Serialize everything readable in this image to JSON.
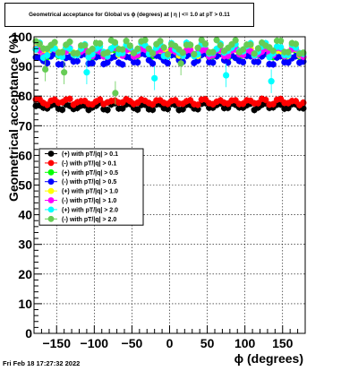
{
  "header": {
    "title": "Geometrical acceptance for Global vs ϕ (degrees) at | η | <= 1.0 at pT > 0.11"
  },
  "footer": {
    "timestamp": "Fri Feb 18 17:27:32 2022"
  },
  "chart_data": {
    "type": "scatter",
    "title": "Geometrical acceptance for Global vs ϕ (degrees) at | η | <= 1.0 at pT > 0.11",
    "xlabel": "ϕ (degrees)",
    "ylabel": "Geometrical acceptance (%)",
    "xlim": [
      -180,
      180
    ],
    "ylim": [
      0,
      100
    ],
    "xticks": [
      -150,
      -100,
      -50,
      0,
      50,
      100,
      150
    ],
    "xtick_labels": [
      "−150",
      "−100",
      "−50",
      "0",
      "50",
      "100",
      "150"
    ],
    "yticks": [
      0,
      10,
      20,
      30,
      40,
      50,
      60,
      70,
      80,
      90,
      100
    ],
    "grid": true,
    "legend_position": "center-left",
    "n_points": 72,
    "series": [
      {
        "name": "(+) with pT/|q| > 0.1",
        "color": "#000000",
        "marker": "circle",
        "base": 76.5,
        "amp": 1.0,
        "noise": 0.5
      },
      {
        "name": "(-) with pT/|q| > 0.1",
        "color": "#ff0000",
        "marker": "circle",
        "base": 78.0,
        "amp": 0.8,
        "noise": 0.5
      },
      {
        "name": "(+) with pT/|q| > 0.5",
        "color": "#00ff00",
        "marker": "circle",
        "base": 94.5,
        "amp": 1.5,
        "noise": 0.8
      },
      {
        "name": "(-) with pT/|q| > 0.5",
        "color": "#0000ff",
        "marker": "circle",
        "base": 92.5,
        "amp": 1.5,
        "noise": 0.8
      },
      {
        "name": "(+) with pT/|q| > 1.0",
        "color": "#ffff00",
        "marker": "circle",
        "base": 95.0,
        "amp": 1.2,
        "noise": 0.7
      },
      {
        "name": "(-) with pT/|q| > 1.0",
        "color": "#ff00ff",
        "marker": "circle",
        "base": 94.8,
        "amp": 1.2,
        "noise": 0.7
      },
      {
        "name": "(+) with pT/|q| > 2.0",
        "color": "#00ffff",
        "marker": "circle",
        "base": 95.5,
        "amp": 2.0,
        "noise": 1.2,
        "outliers": [
          {
            "x": -110,
            "y": 88
          },
          {
            "x": -20,
            "y": 86
          },
          {
            "x": 75,
            "y": 87
          },
          {
            "x": 135,
            "y": 85
          }
        ]
      },
      {
        "name": "(-) with pT/|q| > 2.0",
        "color": "#66cc55",
        "marker": "circle",
        "base": 96.5,
        "amp": 1.8,
        "noise": 1.2,
        "outliers": [
          {
            "x": -165,
            "y": 89
          },
          {
            "x": -140,
            "y": 88
          },
          {
            "x": -72,
            "y": 81
          },
          {
            "x": 15,
            "y": 91
          }
        ]
      }
    ]
  }
}
